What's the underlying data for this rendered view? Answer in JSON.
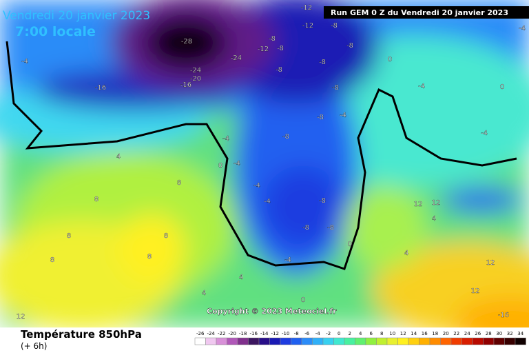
{
  "header": {
    "date": "Vendredi 20 janvier 2023",
    "time": "7:00 locale",
    "run": "Run GEM 0 Z du Vendredi 20 janvier 2023",
    "copyright": "Copyright © 2023 Meteociel.fr"
  },
  "footer": {
    "title": "Température 850hPa",
    "lead": "(+ 6h)"
  },
  "map_labels": [
    "-12",
    "-12",
    "-12",
    "-28",
    "-24",
    "-24",
    "-20",
    "-16",
    "-16",
    "-8",
    "-8",
    "-8",
    "-8",
    "-8",
    "-8",
    "-8",
    "-8",
    "-8",
    "-8",
    "-8",
    "-8",
    "-4",
    "-4",
    "-4",
    "-4",
    "-4",
    "-4",
    "-4",
    "-4",
    "-4",
    "-4",
    "0",
    "0",
    "0",
    "0",
    "0",
    "4",
    "4",
    "4",
    "4",
    "4",
    "8",
    "8",
    "8",
    "8",
    "8",
    "8",
    "12",
    "12",
    "12",
    "12",
    "12",
    "-16"
  ],
  "colorbar": {
    "ticks": [
      -26,
      -24,
      -22,
      -20,
      -18,
      -16,
      -14,
      -12,
      -10,
      -8,
      -6,
      -4,
      -2,
      0,
      2,
      4,
      6,
      8,
      10,
      12,
      14,
      16,
      18,
      20,
      22,
      24,
      26,
      28,
      30,
      32,
      34
    ],
    "colors": [
      "#ffffff",
      "#f0c8f0",
      "#d890d8",
      "#b058b8",
      "#80308c",
      "#3c1660",
      "#280e88",
      "#1a1ab4",
      "#1e3ce0",
      "#2060f0",
      "#2c8cf8",
      "#30b0f8",
      "#38d0f0",
      "#40e8d0",
      "#48f0a0",
      "#60f070",
      "#90f040",
      "#c0f030",
      "#e8f030",
      "#fff020",
      "#ffd010",
      "#ffb000",
      "#ff8c00",
      "#ff6400",
      "#f03c00",
      "#d81e00",
      "#b80a00",
      "#900000",
      "#600000",
      "#380000",
      "#100000"
    ]
  }
}
